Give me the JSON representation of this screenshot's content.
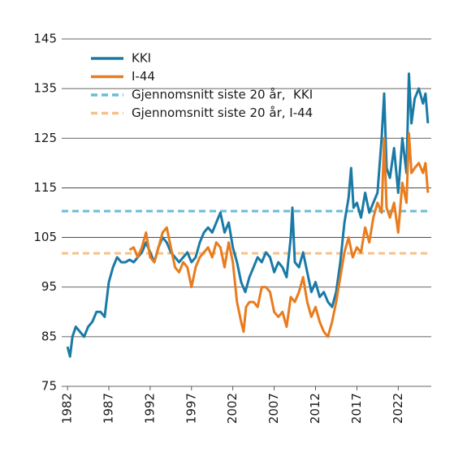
{
  "chart_data": {
    "type": "line",
    "xlim": [
      1981.3,
      2026.0
    ],
    "xticks": [
      1982,
      1987,
      1992,
      1997,
      2002,
      2007,
      2012,
      2017,
      2022
    ],
    "ylim": [
      75,
      145
    ],
    "yticks": [
      75,
      85,
      95,
      105,
      115,
      125,
      135,
      145
    ],
    "grid": true,
    "legend": "upper left",
    "series": [
      {
        "name": "KKI",
        "color": "#1a7aa6",
        "x": [
          1982.0,
          1982.3,
          1982.6,
          1983.0,
          1983.5,
          1984.0,
          1984.5,
          1985.0,
          1985.5,
          1986.0,
          1986.5,
          1987.0,
          1987.5,
          1988.0,
          1988.5,
          1989.0,
          1989.5,
          1990.0,
          1990.5,
          1991.0,
          1991.5,
          1992.0,
          1992.5,
          1993.0,
          1993.5,
          1994.0,
          1994.5,
          1995.0,
          1995.5,
          1996.0,
          1996.5,
          1997.0,
          1997.5,
          1998.0,
          1998.5,
          1999.0,
          1999.5,
          2000.0,
          2000.5,
          2001.0,
          2001.5,
          2002.0,
          2002.5,
          2003.0,
          2003.5,
          2004.0,
          2004.5,
          2005.0,
          2005.5,
          2006.0,
          2006.5,
          2007.0,
          2007.5,
          2008.0,
          2008.5,
          2009.0,
          2009.2,
          2009.5,
          2010.0,
          2010.5,
          2011.0,
          2011.5,
          2012.0,
          2012.5,
          2013.0,
          2013.5,
          2014.0,
          2014.5,
          2015.0,
          2015.5,
          2016.0,
          2016.3,
          2016.6,
          2017.0,
          2017.5,
          2018.0,
          2018.5,
          2019.0,
          2019.5,
          2020.0,
          2020.3,
          2020.6,
          2021.0,
          2021.5,
          2022.0,
          2022.5,
          2023.0,
          2023.3,
          2023.6,
          2024.0,
          2024.5,
          2025.0,
          2025.3,
          2025.6
        ],
        "values": [
          83,
          81,
          85,
          87,
          86,
          85,
          87,
          88,
          90,
          90,
          89,
          96,
          99,
          101,
          100,
          100,
          100.5,
          100,
          101,
          102,
          104,
          102,
          100,
          103,
          105,
          104,
          102,
          101,
          100,
          101,
          102,
          100,
          101,
          104,
          106,
          107,
          106,
          108,
          110,
          106,
          108,
          103,
          100,
          96,
          94,
          97,
          99,
          101,
          100,
          102,
          101,
          98,
          100,
          99,
          97,
          105,
          111,
          100,
          99,
          102,
          98,
          94,
          96,
          93,
          94,
          92,
          91,
          94,
          100,
          108,
          113,
          119,
          111,
          112,
          109,
          114,
          110,
          112,
          114,
          125,
          134,
          119,
          117,
          123,
          114,
          125,
          118,
          138,
          128,
          133,
          135,
          132,
          134,
          128
        ]
      },
      {
        "name": "I-44",
        "color": "#e87c1e",
        "x": [
          1989.5,
          1990.0,
          1990.5,
          1991.0,
          1991.5,
          1992.0,
          1992.5,
          1993.0,
          1993.5,
          1994.0,
          1994.5,
          1995.0,
          1995.5,
          1996.0,
          1996.5,
          1997.0,
          1997.5,
          1998.0,
          1998.5,
          1999.0,
          1999.5,
          2000.0,
          2000.5,
          2001.0,
          2001.5,
          2002.0,
          2002.5,
          2003.0,
          2003.3,
          2003.6,
          2004.0,
          2004.5,
          2005.0,
          2005.5,
          2006.0,
          2006.5,
          2007.0,
          2007.5,
          2008.0,
          2008.5,
          2009.0,
          2009.5,
          2010.0,
          2010.5,
          2011.0,
          2011.5,
          2012.0,
          2012.5,
          2013.0,
          2013.5,
          2014.0,
          2014.5,
          2015.0,
          2015.5,
          2016.0,
          2016.5,
          2017.0,
          2017.5,
          2018.0,
          2018.5,
          2019.0,
          2019.5,
          2020.0,
          2020.3,
          2020.6,
          2021.0,
          2021.5,
          2022.0,
          2022.5,
          2023.0,
          2023.3,
          2023.6,
          2024.0,
          2024.5,
          2025.0,
          2025.3,
          2025.6
        ],
        "values": [
          102.5,
          103,
          101,
          103,
          106,
          101,
          100,
          103,
          106,
          107,
          103,
          99,
          98,
          100,
          99,
          95,
          99,
          101,
          102,
          103,
          101,
          104,
          103,
          99,
          104,
          100,
          92,
          88,
          86,
          91,
          92,
          92,
          91,
          95,
          95,
          94,
          90,
          89,
          90,
          87,
          93,
          92,
          94,
          97,
          92,
          89,
          91,
          88,
          86,
          85,
          88,
          92,
          97,
          102,
          105,
          101,
          103,
          102,
          107,
          104,
          109,
          112,
          110,
          125,
          111,
          109,
          112,
          106,
          116,
          112,
          126,
          118,
          119,
          120,
          118,
          120,
          114
        ]
      }
    ],
    "reference_lines": [
      {
        "name": "Gjennomsnitt siste 20 år,  KKI",
        "color": "#6bbcd6",
        "value": 110.3
      },
      {
        "name": "Gjennomsnitt siste 20 år, I-44",
        "color": "#f7c08a",
        "value": 101.8
      }
    ]
  }
}
